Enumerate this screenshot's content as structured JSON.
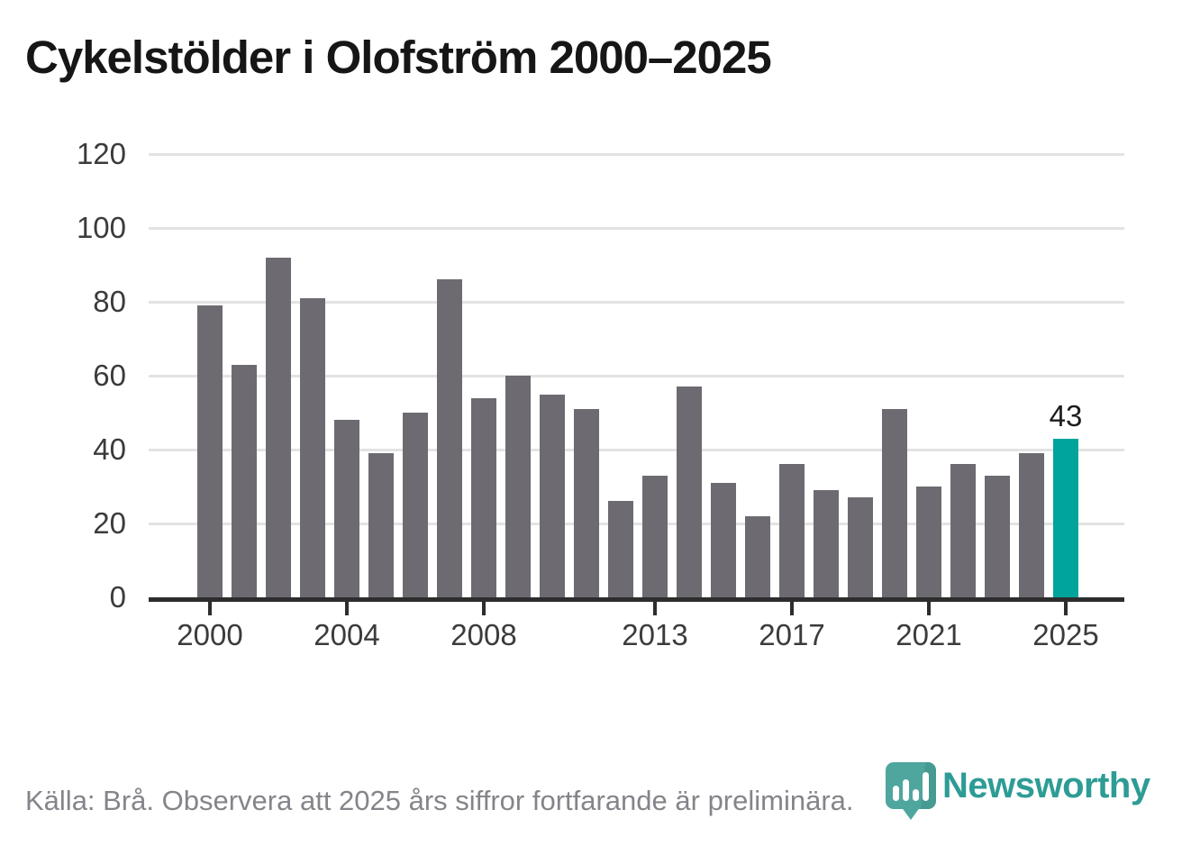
{
  "title": "Cykelstölder i Olofström 2000–2025",
  "footer": {
    "source_note": "Källa: Brå. Observera att 2025 års siffror fortfarande är preliminära."
  },
  "branding": {
    "logo_text": "Newsworthy",
    "logo_icon": "newsworthy-pin-icon"
  },
  "colors": {
    "bar": "#6d6a71",
    "highlight_bar": "#00a49c",
    "gridline": "#e3e3e3",
    "axis_line": "#2d2d2d",
    "tick_text": "#3b3b3b",
    "title_text": "#161616",
    "footer_text": "#85848a",
    "logo_pin_teal": "#4fa69e",
    "logo_pin_shade": "#3e8f88",
    "wordmark_teal": "#2d9c95"
  },
  "chart_data": {
    "type": "bar",
    "title": "Cykelstölder i Olofström 2000–2025",
    "categories": [
      2000,
      2001,
      2002,
      2003,
      2004,
      2005,
      2006,
      2007,
      2008,
      2009,
      2010,
      2011,
      2012,
      2013,
      2014,
      2015,
      2016,
      2017,
      2018,
      2019,
      2020,
      2021,
      2022,
      2023,
      2024,
      2025
    ],
    "values": [
      79,
      63,
      92,
      81,
      48,
      39,
      50,
      86,
      54,
      60,
      55,
      51,
      26,
      33,
      57,
      31,
      22,
      36,
      29,
      27,
      51,
      30,
      36,
      33,
      39,
      43
    ],
    "highlight_index": 25,
    "data_label": {
      "index": 25,
      "text": "43"
    },
    "xlabel": "",
    "ylabel": "",
    "ylim": [
      0,
      120
    ],
    "yticks": [
      0,
      20,
      40,
      60,
      80,
      100,
      120
    ],
    "xtick_years": [
      2000,
      2004,
      2008,
      2013,
      2017,
      2021,
      2025
    ],
    "grid": "horizontal",
    "legend": "none"
  }
}
